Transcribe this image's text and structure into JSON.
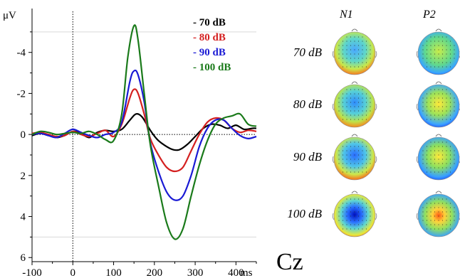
{
  "chart_data": {
    "type": "line",
    "ylabel": "μV",
    "xlabel": "ms",
    "xlim": [
      -100,
      450
    ],
    "ylim": [
      -6,
      6.2
    ],
    "y_inverted": true,
    "x_ticks": [
      -100,
      0,
      100,
      200,
      300,
      400
    ],
    "x_tick_labels": [
      "-100",
      "0",
      "100",
      "200",
      "300",
      "400"
    ],
    "y_ticks": [
      -4,
      -2,
      0,
      2,
      4,
      6
    ],
    "y_tick_labels": [
      "-4",
      "-2",
      "0",
      "2",
      "4",
      "6"
    ],
    "reference_lines": {
      "x": 0,
      "y": 0,
      "dotted_y": [
        -5,
        5
      ]
    },
    "legend": {
      "position": "top-right",
      "entries": [
        "- 70 dB",
        "- 80 dB",
        "- 90 dB",
        "- 100 dB"
      ]
    },
    "series": [
      {
        "name": "70 dB",
        "color": "#000000",
        "points": [
          [
            -100,
            0.05
          ],
          [
            -80,
            -0.05
          ],
          [
            -60,
            0.05
          ],
          [
            -40,
            0.15
          ],
          [
            -20,
            0.05
          ],
          [
            0,
            -0.15
          ],
          [
            20,
            -0.05
          ],
          [
            40,
            0.15
          ],
          [
            60,
            -0.1
          ],
          [
            80,
            -0.2
          ],
          [
            100,
            -0.15
          ],
          [
            120,
            -0.25
          ],
          [
            140,
            -0.7
          ],
          [
            155,
            -1.0
          ],
          [
            170,
            -0.85
          ],
          [
            190,
            -0.2
          ],
          [
            210,
            0.3
          ],
          [
            240,
            0.7
          ],
          [
            260,
            0.75
          ],
          [
            280,
            0.5
          ],
          [
            300,
            0.1
          ],
          [
            320,
            -0.3
          ],
          [
            340,
            -0.5
          ],
          [
            360,
            -0.45
          ],
          [
            380,
            -0.3
          ],
          [
            400,
            -0.45
          ],
          [
            420,
            -0.25
          ],
          [
            440,
            -0.3
          ],
          [
            450,
            -0.3
          ]
        ]
      },
      {
        "name": "80 dB",
        "color": "#d42020",
        "points": [
          [
            -100,
            -0.05
          ],
          [
            -80,
            -0.1
          ],
          [
            -60,
            0.0
          ],
          [
            -40,
            0.1
          ],
          [
            -20,
            0.05
          ],
          [
            0,
            -0.15
          ],
          [
            20,
            0.0
          ],
          [
            40,
            0.1
          ],
          [
            60,
            -0.05
          ],
          [
            80,
            -0.2
          ],
          [
            100,
            0.1
          ],
          [
            120,
            -0.5
          ],
          [
            140,
            -1.8
          ],
          [
            150,
            -2.2
          ],
          [
            160,
            -2.0
          ],
          [
            175,
            -1.0
          ],
          [
            190,
            0.2
          ],
          [
            210,
            1.0
          ],
          [
            230,
            1.6
          ],
          [
            250,
            1.8
          ],
          [
            270,
            1.6
          ],
          [
            290,
            0.8
          ],
          [
            310,
            0.0
          ],
          [
            330,
            -0.6
          ],
          [
            350,
            -0.8
          ],
          [
            370,
            -0.7
          ],
          [
            390,
            -0.3
          ],
          [
            410,
            -0.1
          ],
          [
            430,
            -0.2
          ],
          [
            450,
            -0.15
          ]
        ]
      },
      {
        "name": "90 dB",
        "color": "#1a1ad4",
        "points": [
          [
            -100,
            0.0
          ],
          [
            -80,
            -0.05
          ],
          [
            -60,
            0.05
          ],
          [
            -40,
            0.15
          ],
          [
            -20,
            -0.05
          ],
          [
            0,
            -0.25
          ],
          [
            20,
            -0.1
          ],
          [
            40,
            0.05
          ],
          [
            60,
            0.15
          ],
          [
            80,
            0.0
          ],
          [
            100,
            -0.1
          ],
          [
            120,
            -0.6
          ],
          [
            140,
            -2.6
          ],
          [
            150,
            -3.1
          ],
          [
            160,
            -2.9
          ],
          [
            175,
            -1.6
          ],
          [
            190,
            0.4
          ],
          [
            210,
            1.8
          ],
          [
            230,
            2.8
          ],
          [
            250,
            3.2
          ],
          [
            270,
            3.0
          ],
          [
            290,
            2.0
          ],
          [
            310,
            0.6
          ],
          [
            330,
            -0.3
          ],
          [
            350,
            -0.7
          ],
          [
            370,
            -0.7
          ],
          [
            390,
            -0.3
          ],
          [
            410,
            0.05
          ],
          [
            430,
            0.2
          ],
          [
            450,
            0.1
          ]
        ]
      },
      {
        "name": "100 dB",
        "color": "#1a7a1a",
        "points": [
          [
            -100,
            0.0
          ],
          [
            -80,
            -0.15
          ],
          [
            -60,
            -0.1
          ],
          [
            -40,
            0.0
          ],
          [
            -20,
            -0.05
          ],
          [
            0,
            -0.1
          ],
          [
            20,
            -0.05
          ],
          [
            40,
            -0.15
          ],
          [
            60,
            0.0
          ],
          [
            80,
            0.25
          ],
          [
            100,
            0.3
          ],
          [
            120,
            -1.0
          ],
          [
            135,
            -3.8
          ],
          [
            150,
            -5.3
          ],
          [
            160,
            -4.6
          ],
          [
            175,
            -2.0
          ],
          [
            190,
            0.5
          ],
          [
            210,
            2.5
          ],
          [
            230,
            4.3
          ],
          [
            250,
            5.1
          ],
          [
            270,
            4.6
          ],
          [
            290,
            3.0
          ],
          [
            310,
            1.5
          ],
          [
            330,
            0.3
          ],
          [
            350,
            -0.5
          ],
          [
            370,
            -0.8
          ],
          [
            390,
            -0.9
          ],
          [
            410,
            -1.0
          ],
          [
            430,
            -0.5
          ],
          [
            450,
            -0.4
          ]
        ]
      }
    ]
  },
  "topography": {
    "column_headers": [
      "N1",
      "P2"
    ],
    "rows": [
      {
        "label": "70 dB"
      },
      {
        "label": "80 dB"
      },
      {
        "label": "90 dB"
      },
      {
        "label": "100 dB"
      }
    ],
    "electrode": "Cz"
  }
}
